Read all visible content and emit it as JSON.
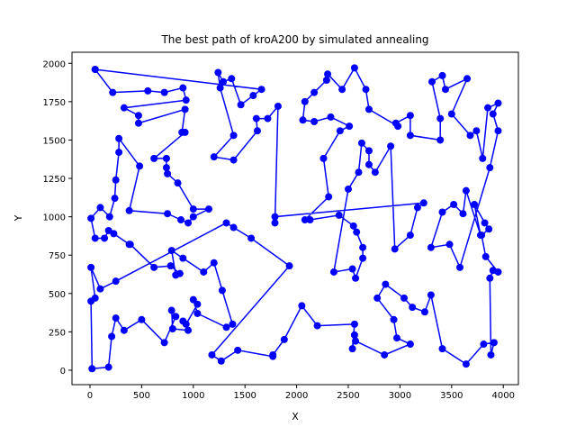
{
  "chart_data": {
    "type": "line",
    "title": "The best path of kroA200 by simulated annealing",
    "x_label": "X",
    "y_label": "Y",
    "color": "#0000ff",
    "marker": "o",
    "xlim": [
      -174,
      4146
    ],
    "ylim": [
      -94,
      2072
    ],
    "xticks": [
      0,
      500,
      1000,
      1500,
      2000,
      2500,
      3000,
      3500,
      4000
    ],
    "yticks": [
      0,
      250,
      500,
      750,
      1000,
      1250,
      1500,
      1750,
      2000
    ],
    "x": [
      50,
      220,
      560,
      720,
      900,
      930,
      330,
      470,
      470,
      920,
      890,
      920,
      620,
      740,
      740,
      750,
      850,
      1000,
      1150,
      1000,
      950,
      880,
      750,
      380,
      480,
      280,
      280,
      250,
      240,
      190,
      100,
      10,
      50,
      140,
      180,
      230,
      380,
      390,
      620,
      780,
      870,
      830,
      790,
      900,
      1100,
      1200,
      1280,
      1380,
      1320,
      1040,
      1000,
      1040,
      930,
      900,
      950,
      800,
      790,
      830,
      720,
      500,
      330,
      250,
      210,
      180,
      20,
      10,
      50,
      10,
      100,
      250,
      1320,
      1390,
      1560,
      1930,
      1180,
      1270,
      1430,
      1770,
      1770,
      1880,
      2050,
      2200,
      2560,
      2540,
      2560,
      2570,
      2850,
      3100,
      2970,
      2940,
      2780,
      2860,
      3040,
      3120,
      3240,
      3300,
      3410,
      3640,
      3810,
      3910,
      3880,
      3870,
      3900,
      3950,
      3830,
      3790,
      3860,
      3820,
      3720,
      3780,
      3640,
      3610,
      3520,
      3410,
      3300,
      3480,
      3580,
      3870,
      3950,
      3900,
      3950,
      3850,
      3800,
      3740,
      3680,
      3500,
      3650,
      3440,
      3410,
      3310,
      3390,
      3390,
      3100,
      3100,
      2960,
      2980,
      2700,
      2670,
      2560,
      2440,
      2300,
      2290,
      2170,
      2080,
      2060,
      2170,
      2330,
      2510,
      2420,
      2260,
      2310,
      2080,
      2130,
      2410,
      2550,
      2580,
      2640,
      2640,
      2570,
      2540,
      2360,
      2500,
      2600,
      2630,
      2700,
      2700,
      2760,
      2910,
      2950,
      3100,
      3170,
      3230,
      1790,
      1790,
      1820,
      1720,
      1610,
      1620,
      1390,
      1200,
      1390,
      1260,
      1240,
      1290,
      1370,
      1460,
      1580,
      1660,
      50
    ],
    "y": [
      1960,
      1810,
      1820,
      1810,
      1840,
      1760,
      1710,
      1660,
      1610,
      1700,
      1550,
      1550,
      1380,
      1380,
      1320,
      1280,
      1220,
      1050,
      1050,
      1000,
      960,
      980,
      1020,
      1040,
      1330,
      1510,
      1420,
      1240,
      1120,
      1000,
      1060,
      990,
      860,
      860,
      910,
      890,
      820,
      820,
      670,
      680,
      630,
      620,
      780,
      730,
      640,
      700,
      520,
      300,
      280,
      370,
      460,
      430,
      300,
      320,
      260,
      270,
      390,
      350,
      180,
      330,
      260,
      340,
      220,
      20,
      10,
      450,
      470,
      670,
      530,
      580,
      960,
      930,
      860,
      680,
      100,
      60,
      130,
      90,
      100,
      200,
      420,
      290,
      300,
      140,
      230,
      190,
      100,
      170,
      210,
      330,
      470,
      560,
      470,
      410,
      380,
      490,
      140,
      40,
      170,
      180,
      100,
      600,
      650,
      640,
      740,
      880,
      920,
      960,
      1080,
      880,
      1170,
      1020,
      1080,
      1030,
      800,
      820,
      670,
      1320,
      1560,
      1670,
      1740,
      1710,
      1380,
      1560,
      1530,
      1670,
      1900,
      1830,
      1920,
      1880,
      1640,
      1500,
      1530,
      1660,
      1610,
      1590,
      1700,
      1830,
      1970,
      1830,
      1930,
      1890,
      1810,
      1750,
      1630,
      1620,
      1650,
      1590,
      1560,
      1380,
      1130,
      980,
      980,
      1010,
      940,
      900,
      800,
      730,
      600,
      660,
      640,
      1180,
      1290,
      1480,
      1430,
      1340,
      1290,
      1460,
      790,
      880,
      1060,
      1090,
      1000,
      960,
      1720,
      1640,
      1640,
      1560,
      1370,
      1390,
      1530,
      1840,
      1940,
      1880,
      1900,
      1730,
      1790,
      1830,
      1960
    ]
  }
}
